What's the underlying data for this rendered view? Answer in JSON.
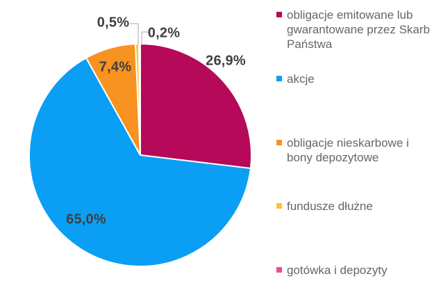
{
  "chart_data": {
    "type": "pie",
    "title": "",
    "unit": "%",
    "legend_position": "right",
    "start_angle": "12-oclock",
    "direction": "clockwise",
    "slices": [
      {
        "id": "obligacje-skarbowe",
        "label": "obligacje emitowane lub gwarantowane przez Skarb Państwa",
        "value": 26.9,
        "display": "26,9%",
        "color": "#B6095A"
      },
      {
        "id": "akcje",
        "label": "akcje",
        "value": 65.0,
        "display": "65,0%",
        "color": "#0A9FF4"
      },
      {
        "id": "obligacje-nieskarbowe",
        "label": "obligacje nieskarbowe i bony depozytowe",
        "value": 7.4,
        "display": "7,4%",
        "color": "#F89220"
      },
      {
        "id": "fundusze-dluzne",
        "label": "fundusze dłużne",
        "value": 0.5,
        "display": "0,5%",
        "color": "#FFC22B"
      },
      {
        "id": "gotowka-depozyty",
        "label": "gotówka i depozyty",
        "value": 0.2,
        "display": "0,2%",
        "color": "#F8489C"
      }
    ]
  },
  "colors": {
    "label_text": "#3F3F3F",
    "legend_text": "#666666",
    "leader_line": "#A6A6A6",
    "background": "#FFFFFF"
  }
}
